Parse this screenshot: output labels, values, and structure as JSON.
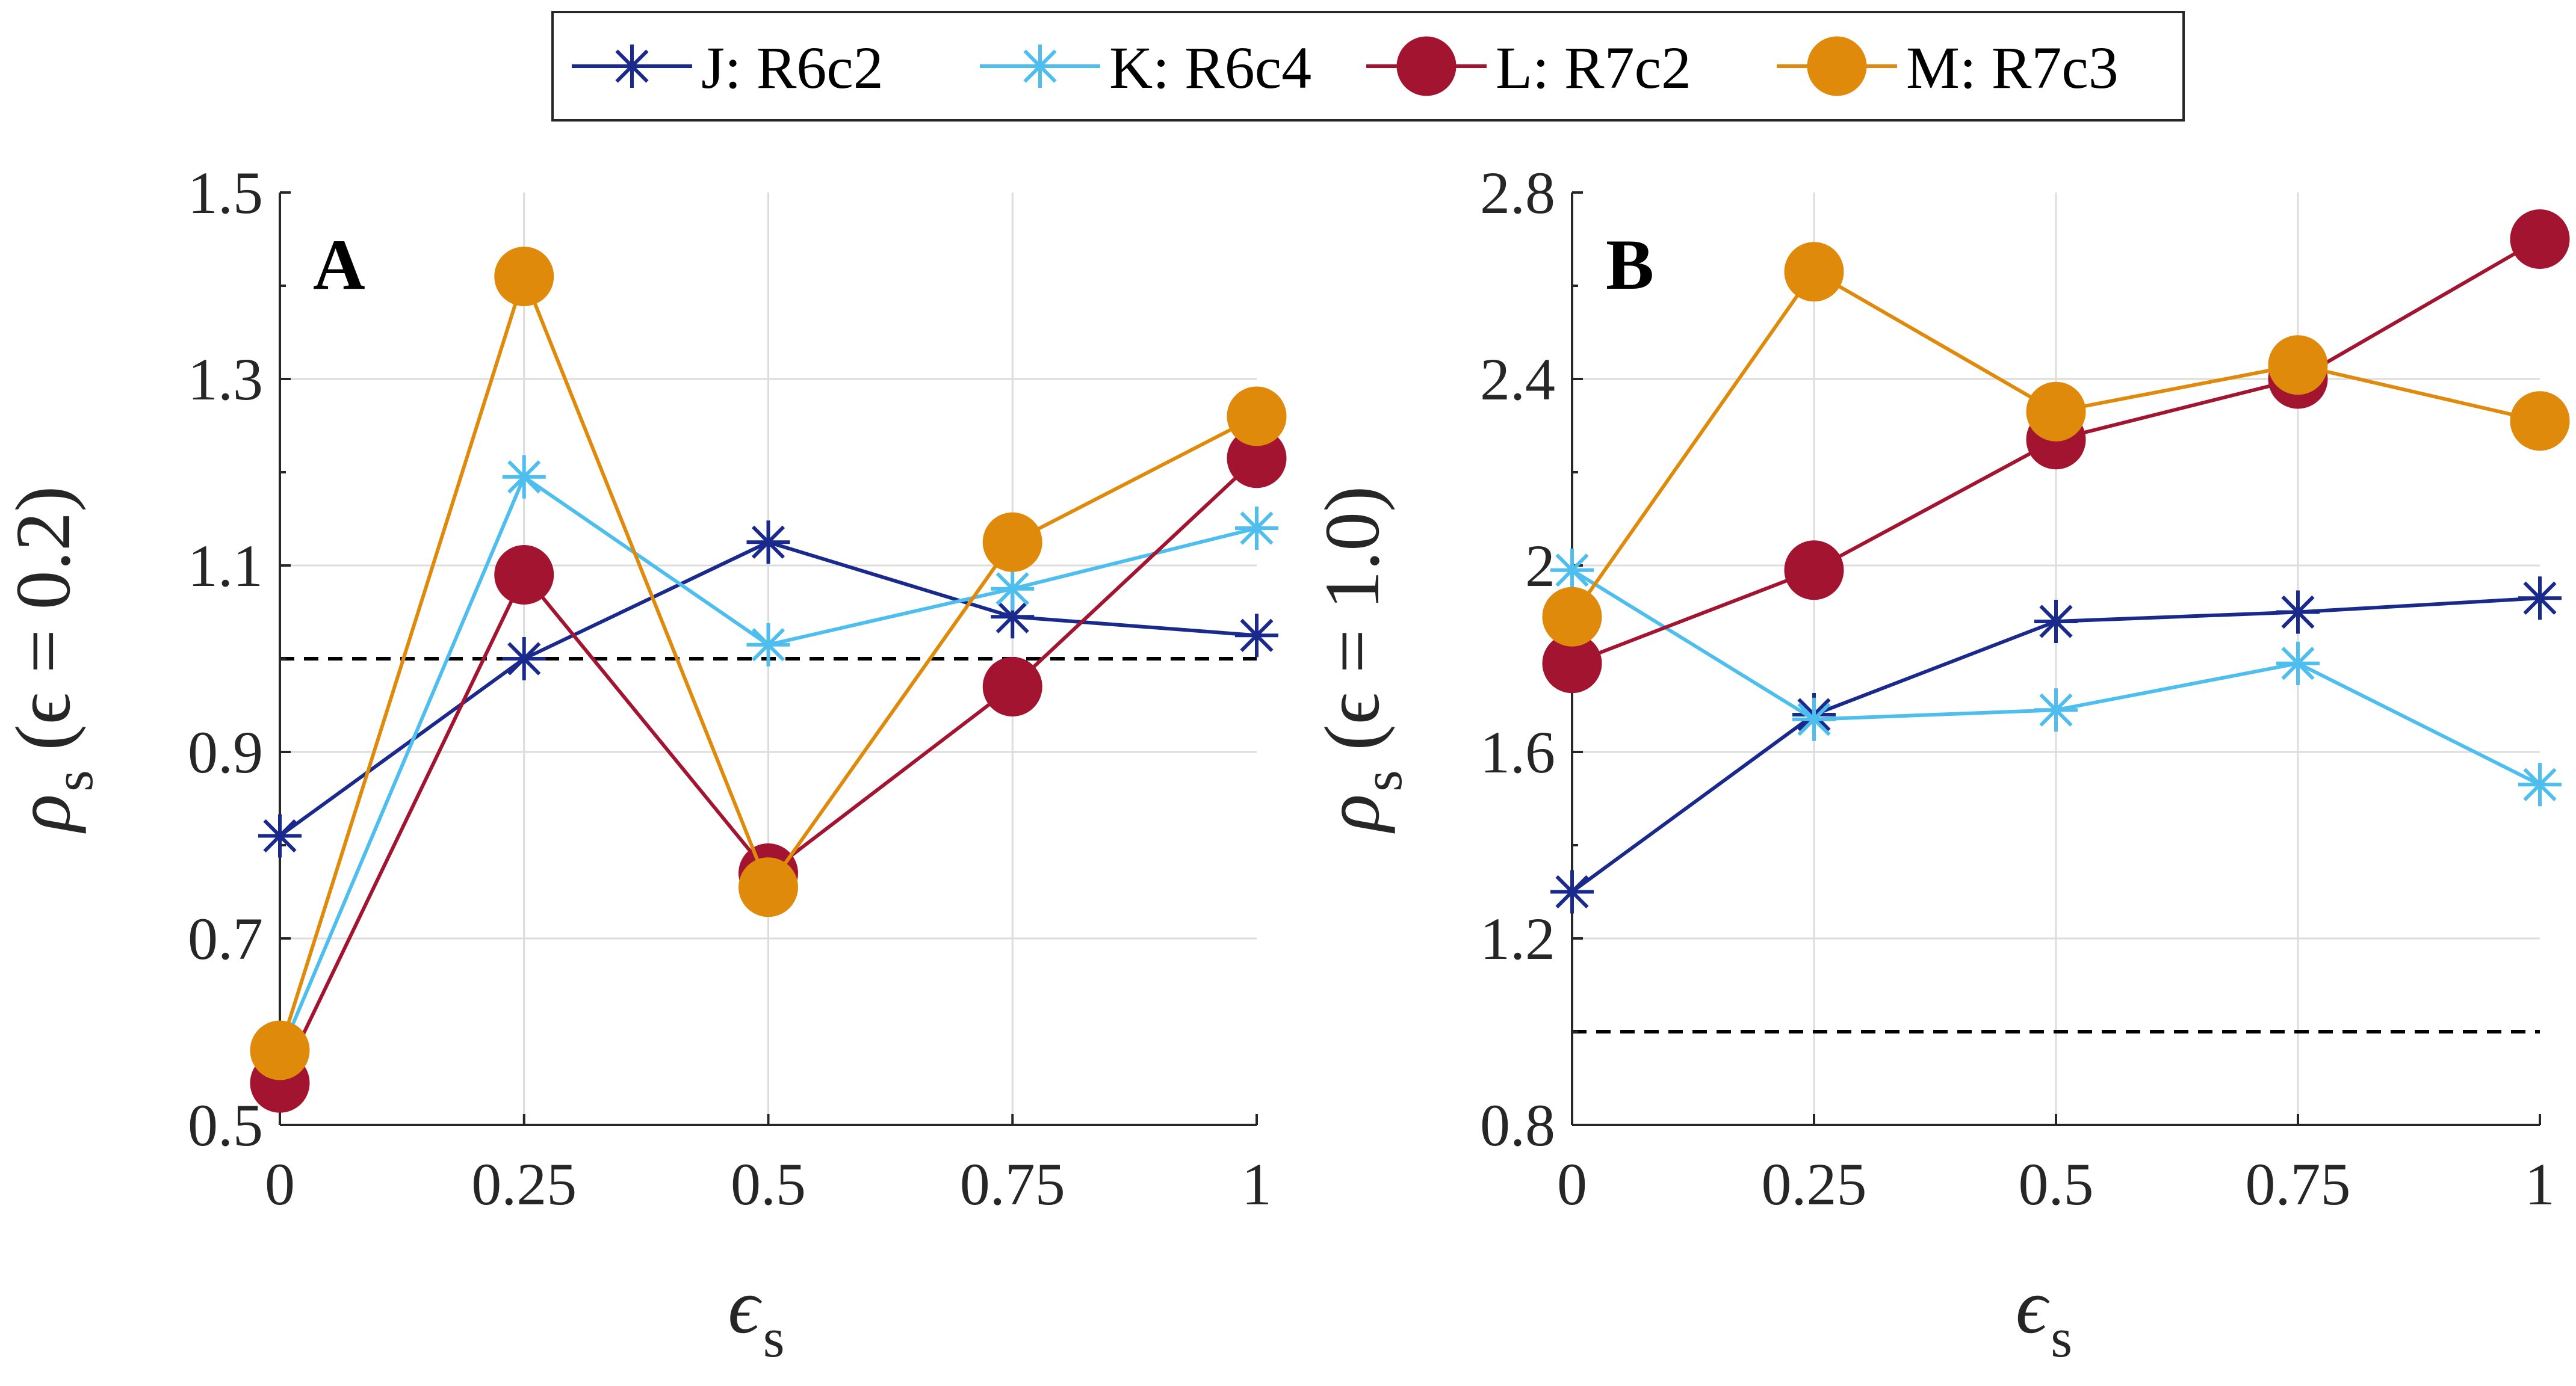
{
  "legend": {
    "entries": [
      {
        "key": "J",
        "label": "J: R6c2"
      },
      {
        "key": "K",
        "label": "K: R6c4"
      },
      {
        "key": "L",
        "label": "L: R7c2"
      },
      {
        "key": "M",
        "label": "M: R7c3"
      }
    ],
    "placement": "top-center"
  },
  "colors": {
    "J": "#1a2a8c",
    "K": "#4dbeee",
    "L": "#a2142f",
    "M": "#e08a0b",
    "reference_line": "#000000",
    "grid": "#dcdcdc"
  },
  "chart_data": [
    {
      "type": "line",
      "panel": "A",
      "ylabel_symbol": "ρ",
      "ylabel_sub": "s",
      "ylabel_rest": " (ϵ = 0.2)",
      "xlabel_symbol": "ϵ",
      "xlabel_sub": "s",
      "x": [
        0,
        0.25,
        0.5,
        0.75,
        1
      ],
      "x_tick_labels": [
        "0",
        "0.25",
        "0.5",
        "0.75",
        "1"
      ],
      "xlim": [
        0,
        1
      ],
      "ylim": [
        0.5,
        1.5
      ],
      "y_ticks": [
        0.5,
        0.7,
        0.9,
        1.1,
        1.3,
        1.5
      ],
      "y_tick_labels": [
        "0.5",
        "0.7",
        "0.9",
        "1.1",
        "1.3",
        "1.5"
      ],
      "y_minor_ticks": [
        0.6,
        0.8,
        1.0,
        1.2,
        1.4
      ],
      "grid": true,
      "reference_y": 1.0,
      "series": [
        {
          "key": "J",
          "name": "J: R6c2",
          "marker": "asterisk",
          "values": [
            0.81,
            1.0,
            1.125,
            1.045,
            1.025
          ]
        },
        {
          "key": "K",
          "name": "K: R6c4",
          "marker": "asterisk",
          "values": [
            0.575,
            1.195,
            1.015,
            1.075,
            1.14
          ]
        },
        {
          "key": "L",
          "name": "L: R7c2",
          "marker": "circle",
          "values": [
            0.545,
            1.09,
            0.77,
            0.97,
            1.215
          ]
        },
        {
          "key": "M",
          "name": "M: R7c3",
          "marker": "circle",
          "values": [
            0.58,
            1.41,
            0.755,
            1.125,
            1.26
          ]
        }
      ]
    },
    {
      "type": "line",
      "panel": "B",
      "ylabel_symbol": "ρ",
      "ylabel_sub": "s",
      "ylabel_rest": " (ϵ = 1.0)",
      "xlabel_symbol": "ϵ",
      "xlabel_sub": "s",
      "x": [
        0,
        0.25,
        0.5,
        0.75,
        1
      ],
      "x_tick_labels": [
        "0",
        "0.25",
        "0.5",
        "0.75",
        "1"
      ],
      "xlim": [
        0,
        1
      ],
      "ylim": [
        0.8,
        2.8
      ],
      "y_ticks": [
        0.8,
        1.2,
        1.6,
        2.0,
        2.4,
        2.8
      ],
      "y_tick_labels": [
        "0.8",
        "1.2",
        "1.6",
        "2",
        "2.4",
        "2.8"
      ],
      "y_minor_ticks": [
        1.0,
        1.4,
        1.8,
        2.2,
        2.6
      ],
      "grid": true,
      "reference_y": 1.0,
      "series": [
        {
          "key": "J",
          "name": "J: R6c2",
          "marker": "asterisk",
          "values": [
            1.3,
            1.68,
            1.88,
            1.9,
            1.93
          ]
        },
        {
          "key": "K",
          "name": "K: R6c4",
          "marker": "asterisk",
          "values": [
            1.99,
            1.67,
            1.69,
            1.79,
            1.53
          ]
        },
        {
          "key": "L",
          "name": "L: R7c2",
          "marker": "circle",
          "values": [
            1.79,
            1.99,
            2.27,
            2.4,
            2.7
          ]
        },
        {
          "key": "M",
          "name": "M: R7c3",
          "marker": "circle",
          "values": [
            1.89,
            2.63,
            2.33,
            2.43,
            2.31
          ]
        }
      ]
    }
  ]
}
